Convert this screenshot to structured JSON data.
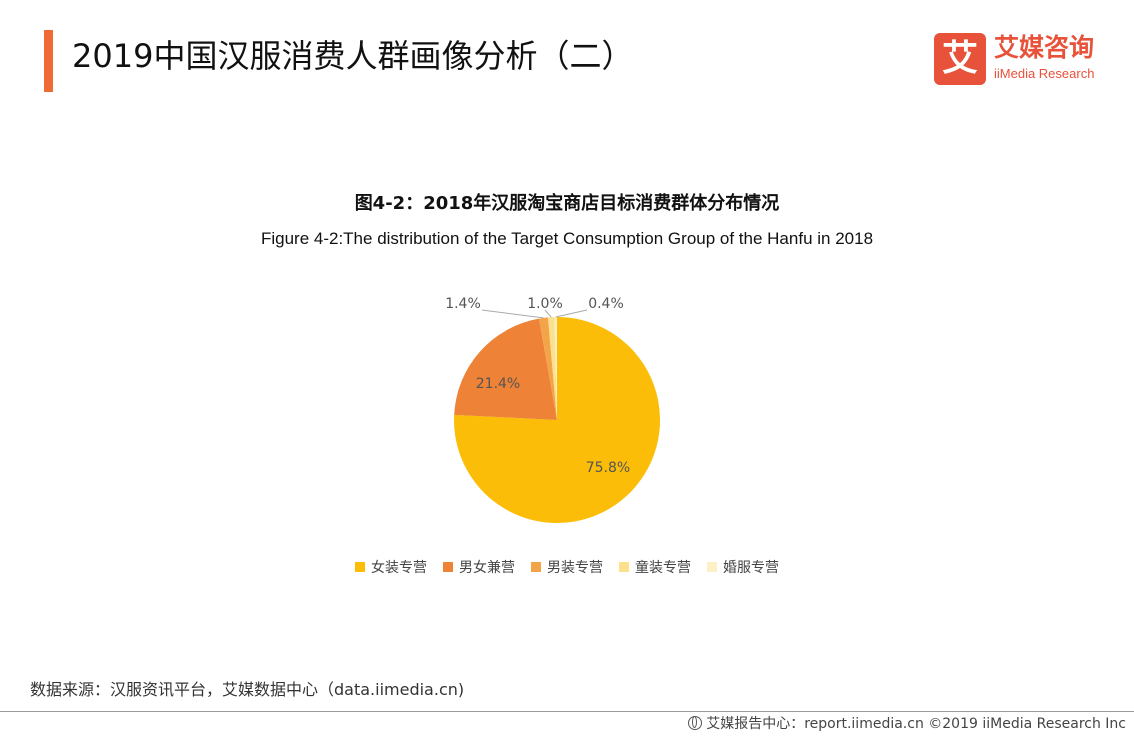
{
  "header": {
    "title": "2019中国汉服消费人群画像分析（二）"
  },
  "logo": {
    "mark": "艾",
    "name_cn": "艾媒咨询",
    "name_en": "iiMedia Research"
  },
  "chart_data": {
    "type": "pie",
    "title": "图4-2：2018年汉服淘宝商店目标消费群体分布情况",
    "subtitle": "Figure 4-2:The distribution of the Target Consumption Group of the Hanfu in 2018",
    "slices": [
      {
        "label": "女装专营",
        "value": 75.8,
        "display": "75.8%",
        "color": "#fbbd08"
      },
      {
        "label": "男女兼营",
        "value": 21.4,
        "display": "21.4%",
        "color": "#ee8236"
      },
      {
        "label": "男装专营",
        "value": 1.4,
        "display": "1.4%",
        "color": "#f3a448"
      },
      {
        "label": "童装专营",
        "value": 1.0,
        "display": "1.0%",
        "color": "#fbe08e"
      },
      {
        "label": "婚服专营",
        "value": 0.4,
        "display": "0.4%",
        "color": "#fdf0c6"
      }
    ],
    "legend_position": "bottom"
  },
  "source": {
    "text": "数据来源：汉服资讯平台，艾媒数据中心（data.iimedia.cn)"
  },
  "footer": {
    "text": "艾媒报告中心：report.iimedia.cn  ©2019  iiMedia Research  Inc"
  }
}
